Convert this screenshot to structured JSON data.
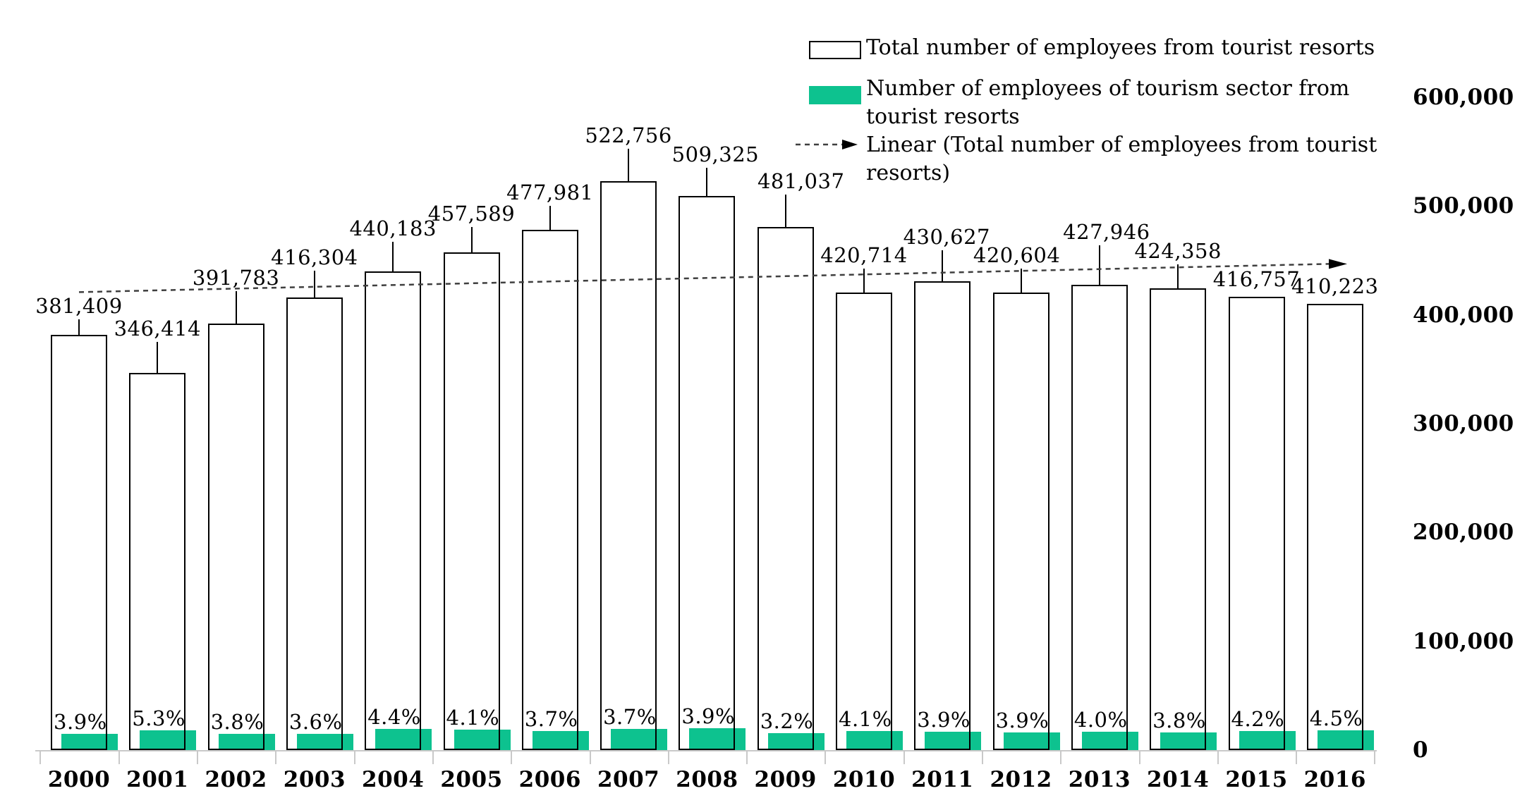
{
  "legend": {
    "total_label": "Total number of employees from tourist resorts",
    "sector_label_line1": "Number of employees of tourism sector from",
    "sector_label_line2": "tourist resorts",
    "linear_label_line1": "Linear (Total number of employees from tourist",
    "linear_label_line2": "resorts)"
  },
  "colors": {
    "sector_green": "#0dc28f",
    "bar_border": "#000000",
    "axis_gray": "#c9c9c9",
    "trend_line": "#3f3f3f"
  },
  "chart_data": {
    "type": "bar",
    "categories": [
      "2000",
      "2001",
      "2002",
      "2003",
      "2004",
      "2005",
      "2006",
      "2007",
      "2008",
      "2009",
      "2010",
      "2011",
      "2012",
      "2013",
      "2014",
      "2015",
      "2016"
    ],
    "series": [
      {
        "name": "Total number of employees from tourist resorts",
        "values": [
          381409,
          346414,
          391783,
          416304,
          440183,
          457589,
          477981,
          522756,
          509325,
          481037,
          420714,
          430627,
          420604,
          427946,
          424358,
          416757,
          410223
        ],
        "labels": [
          "381,409",
          "346,414",
          "391,783",
          "416,304",
          "440,183",
          "457,589",
          "477,981",
          "522,756",
          "509,325",
          "481,037",
          "420,714",
          "430,627",
          "420,604",
          "427,946",
          "424,358",
          "416,757",
          "410,223"
        ],
        "style": "outlined-white"
      },
      {
        "name": "Number of employees of tourism sector from tourist resorts",
        "percent_of_total": [
          3.9,
          5.3,
          3.8,
          3.6,
          4.4,
          4.1,
          3.7,
          3.7,
          3.9,
          3.2,
          4.1,
          3.9,
          3.9,
          4.0,
          3.8,
          4.2,
          4.5
        ],
        "labels": [
          "3.9%",
          "5.3%",
          "3.8%",
          "3.6%",
          "4.4%",
          "4.1%",
          "3.7%",
          "3.7%",
          "3.9%",
          "3.2%",
          "4.1%",
          "3.9%",
          "3.9%",
          "4.0%",
          "3.8%",
          "4.2%",
          "4.5%"
        ],
        "style": "solid-green"
      }
    ],
    "trendline": {
      "name": "Linear (Total number of employees from tourist resorts)",
      "start_value": 420900,
      "end_value": 446850,
      "style": "dashed-arrow"
    },
    "y_axis": {
      "side": "right",
      "ticks": [
        "600,000",
        "500,000",
        "400,000",
        "300,000",
        "200,000",
        "100,000",
        "0"
      ],
      "tick_values": [
        600000,
        500000,
        400000,
        300000,
        200000,
        100000,
        0
      ],
      "ylim": [
        0,
        600000
      ]
    },
    "x_axis": {
      "label": "",
      "tick_style": "outside-gray"
    },
    "title": "",
    "legend_position": "top-right",
    "grid": false
  }
}
